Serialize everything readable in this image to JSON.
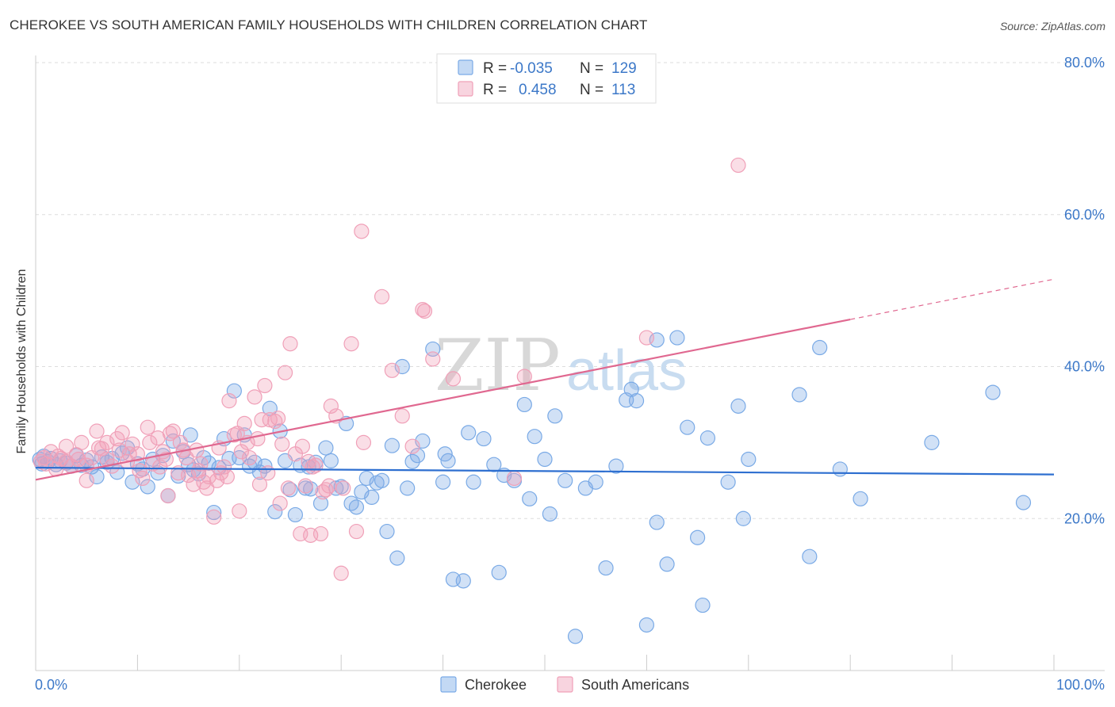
{
  "title": "CHEROKEE VS SOUTH AMERICAN FAMILY HOUSEHOLDS WITH CHILDREN CORRELATION CHART",
  "source": "Source: ZipAtlas.com",
  "watermark": {
    "part1": "ZIP",
    "part2": "atlas"
  },
  "legend": {
    "rows": [
      {
        "r_label": "R =",
        "r_value": "-0.035",
        "n_label": "N =",
        "n_value": "129",
        "color": "#7aaae6"
      },
      {
        "r_label": "R =",
        "r_value": "0.458",
        "n_label": "N =",
        "n_value": "113",
        "color": "#f0a0b8"
      }
    ]
  },
  "bottom_legend": [
    {
      "label": "Cherokee",
      "color": "#7aaae6"
    },
    {
      "label": "South Americans",
      "color": "#f0a0b8"
    }
  ],
  "chart_data": {
    "type": "scatter",
    "ylabel": "Family Households with Children",
    "xlim": [
      0,
      100
    ],
    "ylim": [
      0,
      80
    ],
    "x_tick_labels": [
      "0.0%",
      "100.0%"
    ],
    "y_ticks": [
      {
        "value": 20,
        "label": "20.0%"
      },
      {
        "value": 40,
        "label": "40.0%"
      },
      {
        "value": 60,
        "label": "60.0%"
      },
      {
        "value": 80,
        "label": "80.0%"
      }
    ],
    "series": [
      {
        "name": "Cherokee",
        "color": "#7aaae6",
        "line_color": "#2e6fd0",
        "trend": {
          "x0": 0,
          "y0": 26.7,
          "x1": 100,
          "y1": 25.8
        },
        "points": [
          [
            0.4,
            27.8
          ],
          [
            0.6,
            27.2
          ],
          [
            0.8,
            28.2
          ],
          [
            1.2,
            27.5
          ],
          [
            1.5,
            27.9
          ],
          [
            2,
            27.1
          ],
          [
            2.4,
            27.6
          ],
          [
            3,
            27.3
          ],
          [
            3.5,
            26.9
          ],
          [
            4,
            28.3
          ],
          [
            4.5,
            27.0
          ],
          [
            5,
            27.7
          ],
          [
            5.5,
            26.8
          ],
          [
            6,
            25.5
          ],
          [
            6.5,
            28.1
          ],
          [
            7,
            27.4
          ],
          [
            7.5,
            27.9
          ],
          [
            8,
            26.1
          ],
          [
            8.5,
            28.6
          ],
          [
            9,
            29.3
          ],
          [
            9.5,
            24.8
          ],
          [
            10,
            27.2
          ],
          [
            10.5,
            26.5
          ],
          [
            11,
            24.2
          ],
          [
            11.5,
            27.8
          ],
          [
            12,
            26.0
          ],
          [
            12.5,
            28.3
          ],
          [
            13,
            23.0
          ],
          [
            13.5,
            30.2
          ],
          [
            14,
            25.6
          ],
          [
            14.5,
            28.8
          ],
          [
            15,
            27.1
          ],
          [
            15.5,
            26.4
          ],
          [
            16,
            25.9
          ],
          [
            16.5,
            28.0
          ],
          [
            17,
            27.3
          ],
          [
            17.5,
            20.8
          ],
          [
            18,
            26.7
          ],
          [
            18.5,
            30.5
          ],
          [
            19,
            27.9
          ],
          [
            19.5,
            36.8
          ],
          [
            20,
            28.0
          ],
          [
            20.5,
            31.0
          ],
          [
            21,
            26.9
          ],
          [
            21.5,
            27.4
          ],
          [
            22,
            26.1
          ],
          [
            22.5,
            26.9
          ],
          [
            23,
            34.5
          ],
          [
            23.5,
            20.9
          ],
          [
            24,
            31.5
          ],
          [
            24.5,
            27.6
          ],
          [
            25,
            23.8
          ],
          [
            25.5,
            20.5
          ],
          [
            26,
            27.0
          ],
          [
            26.5,
            24.0
          ],
          [
            27,
            23.9
          ],
          [
            27.5,
            27.4
          ],
          [
            28,
            22.0
          ],
          [
            28.5,
            29.3
          ],
          [
            29,
            27.6
          ],
          [
            29.5,
            24.0
          ],
          [
            30,
            24.2
          ],
          [
            30.5,
            32.5
          ],
          [
            31,
            22.0
          ],
          [
            31.5,
            21.5
          ],
          [
            32,
            23.5
          ],
          [
            32.5,
            25.3
          ],
          [
            33,
            22.8
          ],
          [
            33.5,
            24.7
          ],
          [
            34,
            25.0
          ],
          [
            34.5,
            18.3
          ],
          [
            35,
            29.6
          ],
          [
            35.5,
            14.8
          ],
          [
            36,
            40.0
          ],
          [
            36.5,
            24.0
          ],
          [
            37,
            27.5
          ],
          [
            37.5,
            28.3
          ],
          [
            38,
            30.2
          ],
          [
            39,
            42.3
          ],
          [
            40,
            24.8
          ],
          [
            40.5,
            27.6
          ],
          [
            41,
            12.0
          ],
          [
            42,
            11.8
          ],
          [
            42.5,
            31.3
          ],
          [
            43,
            24.8
          ],
          [
            44,
            30.5
          ],
          [
            45,
            27.1
          ],
          [
            45.5,
            12.9
          ],
          [
            46,
            25.7
          ],
          [
            47,
            25.0
          ],
          [
            48,
            35.0
          ],
          [
            48.5,
            22.6
          ],
          [
            49,
            30.8
          ],
          [
            50,
            27.8
          ],
          [
            50.5,
            20.6
          ],
          [
            51,
            33.5
          ],
          [
            52,
            25.0
          ],
          [
            53,
            4.5
          ],
          [
            54,
            24.0
          ],
          [
            55,
            24.8
          ],
          [
            56,
            13.5
          ],
          [
            57,
            26.9
          ],
          [
            58,
            35.6
          ],
          [
            58.5,
            37.0
          ],
          [
            59,
            35.5
          ],
          [
            60,
            6.0
          ],
          [
            61,
            43.5
          ],
          [
            62,
            14.0
          ],
          [
            63,
            43.8
          ],
          [
            64,
            32.0
          ],
          [
            65,
            17.5
          ],
          [
            65.5,
            8.6
          ],
          [
            66,
            30.6
          ],
          [
            68,
            24.8
          ],
          [
            69,
            34.8
          ],
          [
            69.5,
            20.0
          ],
          [
            70,
            27.8
          ],
          [
            75,
            36.3
          ],
          [
            76,
            15.0
          ],
          [
            77,
            42.5
          ],
          [
            79,
            26.5
          ],
          [
            81,
            22.6
          ],
          [
            88,
            30.0
          ],
          [
            94,
            36.6
          ],
          [
            97,
            22.1
          ],
          [
            15.2,
            31.0
          ],
          [
            26.8,
            26.8
          ],
          [
            40.2,
            28.5
          ],
          [
            61,
            19.5
          ]
        ]
      },
      {
        "name": "South Americans",
        "color": "#f0a0b8",
        "line_color": "#e06890",
        "trend": {
          "x0": 0,
          "y0": 25.1,
          "x1": 80,
          "y1": 46.2
        },
        "trend_dashed": {
          "x0": 80,
          "y0": 46.2,
          "x1": 100,
          "y1": 51.5
        },
        "points": [
          [
            0.5,
            27.5
          ],
          [
            0.8,
            28.0
          ],
          [
            1,
            27.2
          ],
          [
            1.5,
            28.8
          ],
          [
            2,
            26.5
          ],
          [
            2.5,
            27.9
          ],
          [
            3,
            29.5
          ],
          [
            3.5,
            26.9
          ],
          [
            4,
            28.4
          ],
          [
            4.5,
            30.0
          ],
          [
            5,
            25.0
          ],
          [
            5.5,
            28.0
          ],
          [
            6,
            31.5
          ],
          [
            6.5,
            29.2
          ],
          [
            7,
            27.8
          ],
          [
            7.5,
            26.9
          ],
          [
            8,
            30.5
          ],
          [
            8.5,
            31.3
          ],
          [
            9,
            27.5
          ],
          [
            9.5,
            29.8
          ],
          [
            10,
            28.5
          ],
          [
            10.5,
            25.3
          ],
          [
            11,
            32.0
          ],
          [
            11.5,
            27.2
          ],
          [
            12,
            30.6
          ],
          [
            12.5,
            28.8
          ],
          [
            13,
            23.0
          ],
          [
            13.5,
            31.5
          ],
          [
            14,
            26.0
          ],
          [
            14.5,
            29.0
          ],
          [
            15,
            25.7
          ],
          [
            15.5,
            24.5
          ],
          [
            16,
            26.3
          ],
          [
            16.5,
            24.8
          ],
          [
            17,
            25.5
          ],
          [
            17.5,
            20.2
          ],
          [
            18,
            29.3
          ],
          [
            18.5,
            26.8
          ],
          [
            19,
            35.5
          ],
          [
            19.5,
            31.0
          ],
          [
            20,
            21.0
          ],
          [
            20.5,
            32.5
          ],
          [
            21,
            28.0
          ],
          [
            21.5,
            36.0
          ],
          [
            22,
            24.5
          ],
          [
            22.5,
            37.5
          ],
          [
            23,
            33.0
          ],
          [
            23.5,
            32.8
          ],
          [
            24,
            22.0
          ],
          [
            24.5,
            39.2
          ],
          [
            25,
            43.0
          ],
          [
            25.5,
            28.5
          ],
          [
            26,
            18.0
          ],
          [
            26.5,
            24.3
          ],
          [
            27,
            17.8
          ],
          [
            27.5,
            27.0
          ],
          [
            28,
            18.0
          ],
          [
            28.5,
            23.8
          ],
          [
            29,
            34.8
          ],
          [
            29.5,
            33.5
          ],
          [
            30,
            12.8
          ],
          [
            31,
            43.0
          ],
          [
            31.5,
            18.3
          ],
          [
            32,
            57.8
          ],
          [
            34,
            49.2
          ],
          [
            35,
            39.5
          ],
          [
            36,
            33.5
          ],
          [
            37,
            29.5
          ],
          [
            38,
            47.5
          ],
          [
            39,
            41.0
          ],
          [
            41,
            38.4
          ],
          [
            47,
            25.3
          ],
          [
            48,
            38.7
          ],
          [
            60,
            43.8
          ],
          [
            69,
            66.5
          ],
          [
            3,
            27.5
          ],
          [
            5,
            27.0
          ],
          [
            7,
            30.0
          ],
          [
            9.2,
            28.5
          ],
          [
            11.2,
            30.0
          ],
          [
            12.8,
            27.8
          ],
          [
            14.2,
            30.0
          ],
          [
            16.2,
            27.2
          ],
          [
            18.2,
            26.0
          ],
          [
            20.2,
            28.8
          ],
          [
            22.2,
            33.0
          ],
          [
            24.2,
            29.8
          ],
          [
            26.2,
            29.5
          ],
          [
            27.2,
            26.8
          ],
          [
            28.2,
            23.5
          ],
          [
            13.2,
            31.2
          ],
          [
            15.8,
            29.0
          ],
          [
            17.8,
            25.0
          ],
          [
            19.8,
            31.2
          ],
          [
            21.8,
            30.5
          ],
          [
            23.8,
            33.2
          ],
          [
            2.2,
            28.2
          ],
          [
            4.2,
            27.8
          ],
          [
            6.2,
            29.3
          ],
          [
            8.2,
            29.0
          ],
          [
            10.2,
            26.3
          ],
          [
            12.2,
            26.8
          ],
          [
            14.8,
            28.0
          ],
          [
            16.8,
            24.0
          ],
          [
            18.8,
            25.5
          ],
          [
            20.8,
            30.0
          ],
          [
            22.8,
            26.0
          ],
          [
            24.8,
            24.0
          ],
          [
            26.8,
            27.5
          ],
          [
            28.8,
            24.3
          ],
          [
            30.2,
            24.0
          ],
          [
            32.2,
            30.0
          ],
          [
            38.2,
            47.3
          ]
        ]
      }
    ]
  }
}
